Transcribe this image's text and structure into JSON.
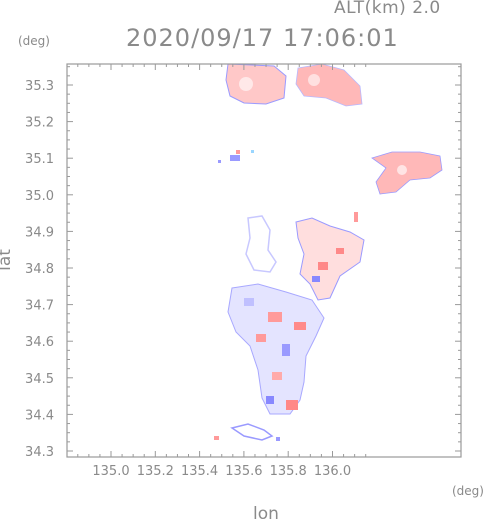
{
  "header": {
    "altitude": "ALT(km)  2.0",
    "timestamp": "2020/09/17 17:06:01"
  },
  "axes": {
    "x_title": "lon",
    "y_title": "lat",
    "x_unit": "(deg)",
    "y_unit": "(deg)",
    "x_ticks": [
      "135.0",
      "135.2",
      "135.4",
      "135.6",
      "135.8",
      "136.0"
    ],
    "y_ticks": [
      "34.3",
      "34.4",
      "34.5",
      "34.6",
      "34.7",
      "34.8",
      "34.9",
      "35.0",
      "35.1",
      "35.2",
      "35.3"
    ]
  },
  "colors": {
    "frame": "#9a9a9a",
    "text": "#8a8a8a",
    "positive": "#ff9a9a",
    "negative": "#9a9aff"
  }
}
